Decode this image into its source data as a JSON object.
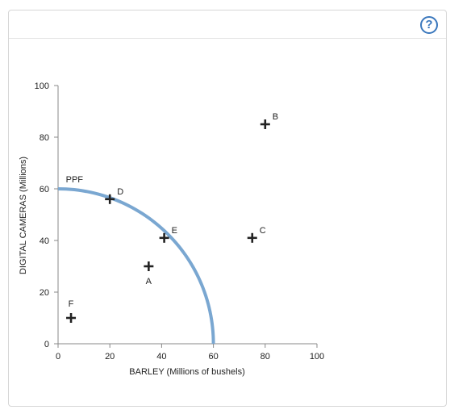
{
  "help": {
    "label": "?",
    "icon": "help-icon"
  },
  "colors": {
    "ppf": "#7aa7d1",
    "axis": "#888888",
    "marker": "#222222",
    "help_accent": "#3b78bd"
  },
  "chart_data": {
    "type": "scatter",
    "xlabel": "BARLEY (Millions of bushels)",
    "ylabel": "DIGITAL CAMERAS (Millions)",
    "xlim": [
      0,
      100
    ],
    "ylim": [
      0,
      100
    ],
    "x_ticks": [
      0,
      20,
      40,
      60,
      80,
      100
    ],
    "y_ticks": [
      0,
      20,
      40,
      60,
      80,
      100
    ],
    "grid": false,
    "curve": {
      "name": "PPF",
      "shape": "quarter-ellipse",
      "x_intercept": 60,
      "y_intercept": 60
    },
    "points": [
      {
        "name": "A",
        "x": 35,
        "y": 30,
        "label_position": "below"
      },
      {
        "name": "B",
        "x": 80,
        "y": 85,
        "label_position": "upper-right"
      },
      {
        "name": "C",
        "x": 75,
        "y": 41,
        "label_position": "upper-right"
      },
      {
        "name": "D",
        "x": 20,
        "y": 56,
        "label_position": "upper-right"
      },
      {
        "name": "E",
        "x": 41,
        "y": 41,
        "label_position": "upper-right"
      },
      {
        "name": "F",
        "x": 5,
        "y": 10,
        "label_position": "above"
      }
    ]
  }
}
